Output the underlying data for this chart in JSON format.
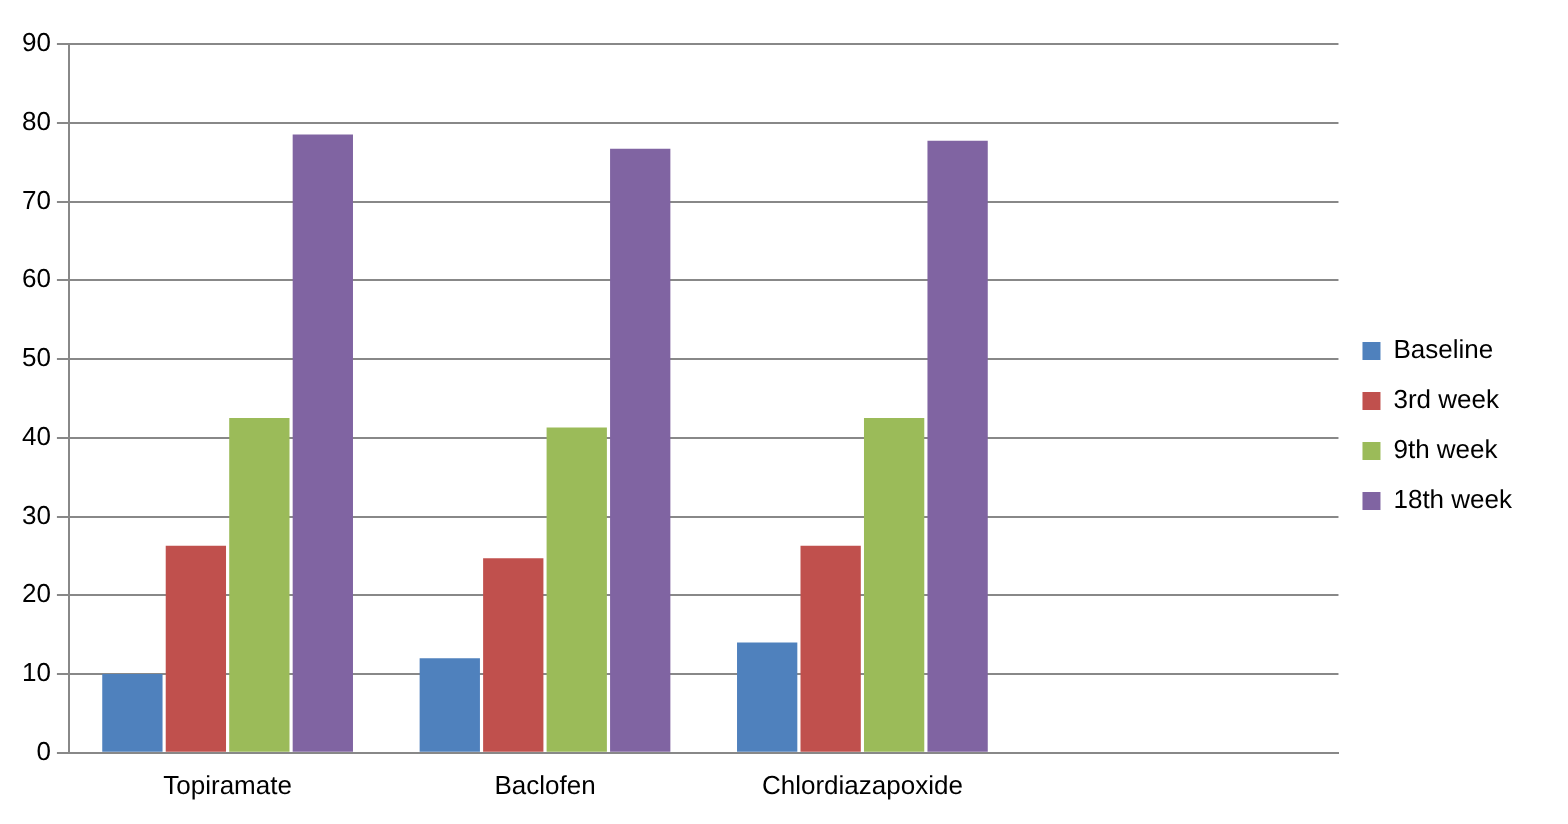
{
  "chart_data": {
    "type": "bar",
    "categories": [
      "Topiramate",
      "Baclofen",
      "Chlordiazapoxide",
      null
    ],
    "series": [
      {
        "name": "Baseline",
        "color": "#4f81bd",
        "values": [
          10,
          12,
          14,
          null
        ]
      },
      {
        "name": "3rd week",
        "color": "#c0504d",
        "values": [
          26.3,
          24.7,
          26.3,
          null
        ]
      },
      {
        "name": "9th week",
        "color": "#9bbb59",
        "values": [
          42.5,
          41.3,
          42.5,
          null
        ]
      },
      {
        "name": "18th week",
        "color": "#8064a2",
        "values": [
          78.5,
          76.7,
          77.7,
          null
        ]
      }
    ],
    "ylim": [
      0,
      90
    ],
    "yticks": [
      0,
      10,
      20,
      30,
      40,
      50,
      60,
      70,
      80,
      90
    ],
    "grid": "y",
    "legend": "right"
  }
}
